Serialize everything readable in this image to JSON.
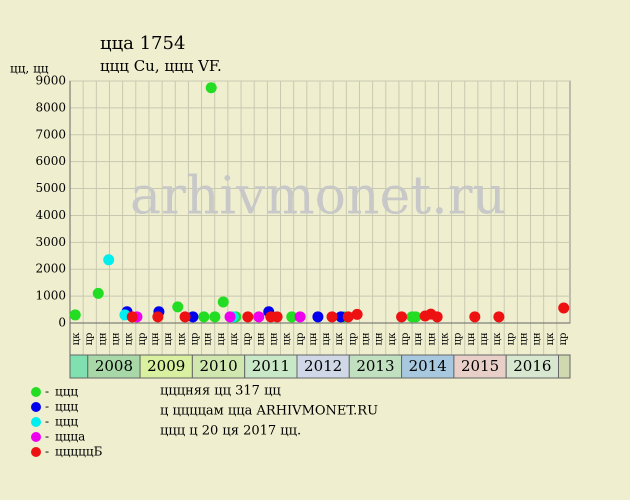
{
  "chart_data": {
    "type": "scatter",
    "title": "ццa 1754",
    "subtitle": "ццц Cu, ццц VF.",
    "y_label": "цц, цц",
    "watermark": "arhivmonet.ru",
    "xlim": [
      2007.66,
      2017.22
    ],
    "ylim": [
      0,
      9000
    ],
    "yticks": [
      0,
      1000,
      2000,
      3000,
      4000,
      5000,
      6000,
      7000,
      8000,
      9000
    ],
    "grid": true,
    "years": [
      2008,
      2009,
      2010,
      2011,
      2012,
      2013,
      2014,
      2015,
      2016
    ],
    "year_colors": [
      "#a8d8a8",
      "#d8f0a0",
      "#d0e8b0",
      "#c8e8c8",
      "#d0d8e8",
      "#c0e0c0",
      "#a8c8e0",
      "#e8d0c8",
      "#d8e8d0"
    ],
    "edge_colors": [
      "#80e0b0",
      "#d0d8b0"
    ],
    "column_labels": [
      "цк",
      "цр",
      "цн",
      "цн",
      "цк",
      "цр",
      "цн",
      "цн",
      "цк",
      "цр",
      "цн",
      "цн",
      "цк",
      "цр",
      "цн",
      "цн",
      "цк",
      "цр",
      "цн",
      "цн",
      "цк",
      "цр",
      "цн",
      "цн",
      "цк",
      "цр",
      "цн",
      "цн",
      "цк",
      "цр",
      "цн",
      "цн",
      "цк",
      "цр",
      "цн",
      "цн",
      "цк",
      "цр"
    ],
    "series": [
      {
        "name": "ццц",
        "color": "#22dd22",
        "x": [
          2007.76,
          2008.2,
          2009.72,
          2010.22,
          2010.36,
          2010.43,
          2010.59,
          2010.83,
          2011.9,
          2012.9,
          2014.2,
          2014.27
        ],
        "values": [
          300,
          1100,
          600,
          230,
          8750,
          230,
          780,
          230,
          230,
          230,
          230,
          230
        ]
      },
      {
        "name": "ццц",
        "color": "#0000ee",
        "x": [
          2008.75,
          2009.36,
          2010.01,
          2011.46,
          2012.4,
          2012.84
        ],
        "values": [
          420,
          420,
          230,
          420,
          230,
          230
        ]
      },
      {
        "name": "ццц",
        "color": "#00eeee",
        "x": [
          2008.4,
          2008.71,
          2010.78
        ],
        "values": [
          2350,
          300,
          230
        ]
      },
      {
        "name": "ццца",
        "color": "#ee00ee",
        "x": [
          2008.94,
          2010.72,
          2011.27,
          2012.06
        ],
        "values": [
          230,
          230,
          230,
          230
        ]
      },
      {
        "name": "цццццБ",
        "color": "#ee1111",
        "x": [
          2008.85,
          2009.34,
          2009.86,
          2011.06,
          2011.5,
          2011.62,
          2012.67,
          2012.98,
          2013.15,
          2014.0,
          2014.45,
          2014.56,
          2014.68,
          2015.4,
          2015.86,
          2017.1
        ],
        "values": [
          230,
          230,
          230,
          230,
          230,
          230,
          230,
          230,
          320,
          230,
          260,
          330,
          230,
          230,
          230,
          560
        ]
      }
    ],
    "notes": [
      "цццняя цц 317 цц",
      "ц ццццам цца ARHIVMONET.RU",
      "ццц ц 20 ця 2017 цц."
    ]
  }
}
